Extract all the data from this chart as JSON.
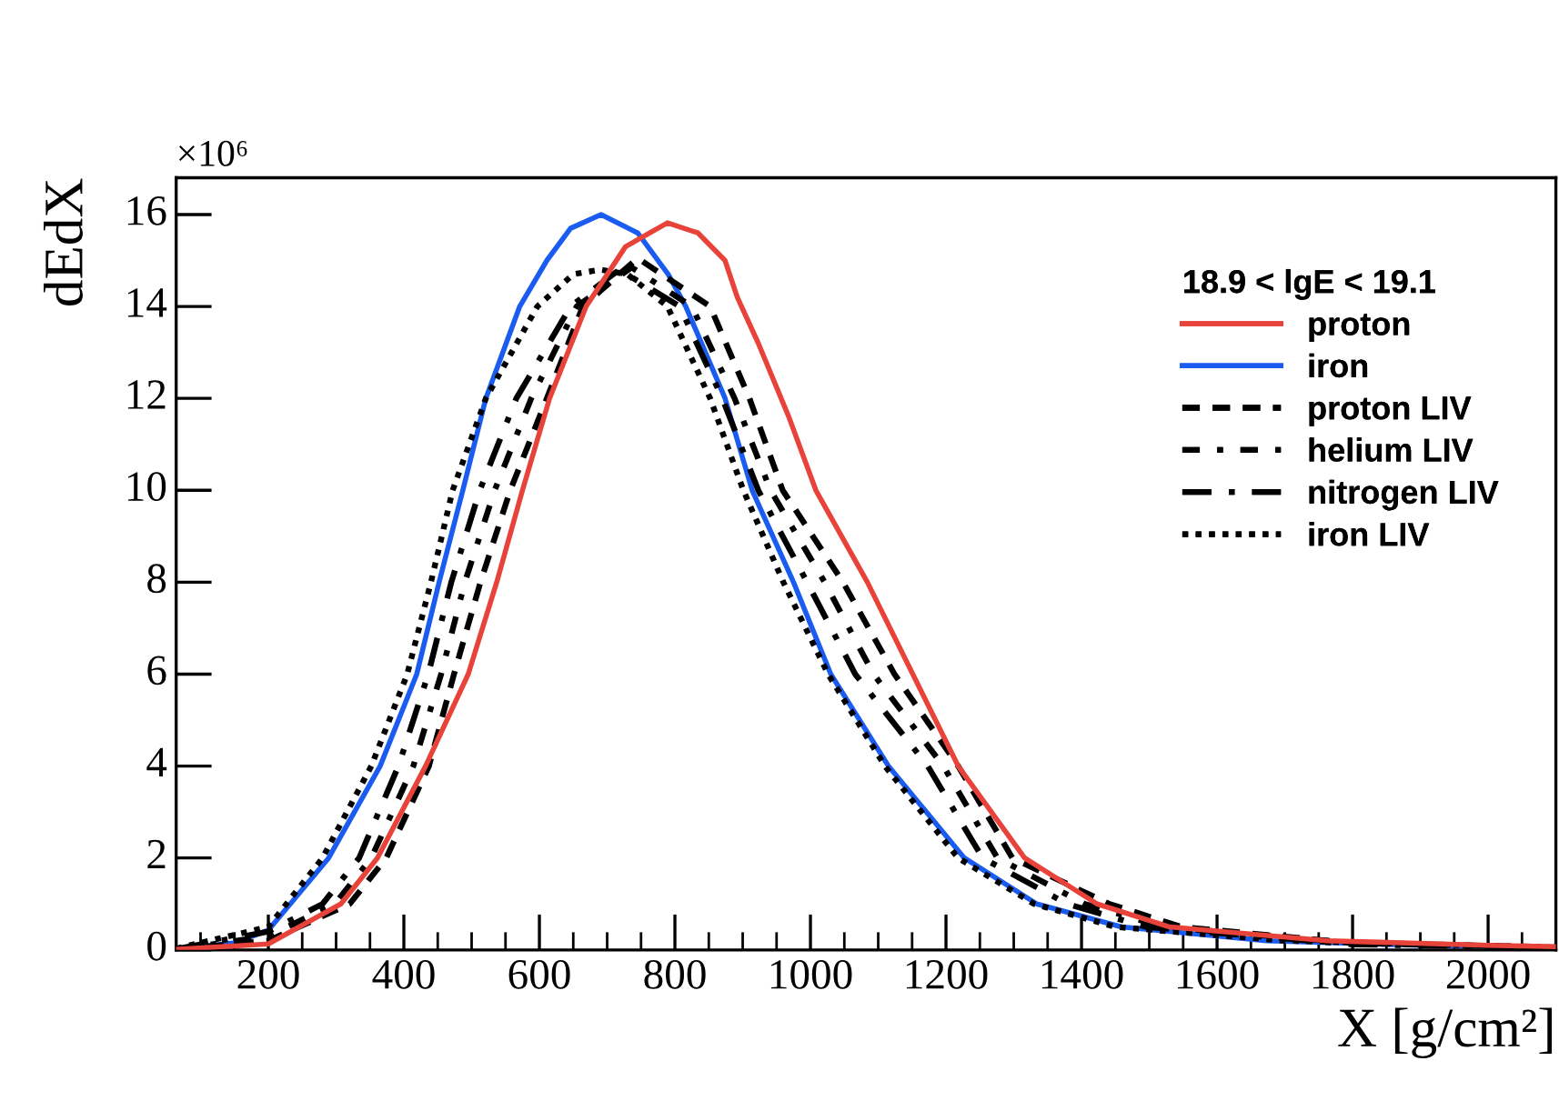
{
  "chart_data": {
    "type": "line",
    "xlabel": "X [g/cm²]",
    "ylabel": "dEdX",
    "legend_title": "18.9 < lgE < 19.1",
    "annotations": [
      "×10⁶"
    ],
    "xlim": [
      64,
      2100
    ],
    "xticks": [
      200,
      400,
      600,
      800,
      1000,
      1200,
      1400,
      1600,
      1800,
      2000
    ],
    "ylim": [
      0,
      16.8
    ],
    "yticks": [
      0,
      2,
      4,
      6,
      8,
      10,
      12,
      14,
      16
    ],
    "grid": false,
    "legend": "top right",
    "marker": "none",
    "series": [
      {
        "name": "proton",
        "color": "#e8433a",
        "line_style": "solid",
        "x": [
          64,
          200,
          307,
          361,
          432,
          495,
          537,
          575,
          615,
          669,
          727,
          789,
          834,
          874,
          892,
          923,
          968,
          1008,
          1084,
          1151,
          1218,
          1316,
          1423,
          1530,
          1763,
          2000,
          2100
        ],
        "values": [
          0.01,
          0.13,
          1,
          2,
          4,
          6,
          8,
          10,
          12,
          14,
          15.3,
          15.82,
          15.6,
          15,
          14.2,
          13.2,
          11.6,
          10,
          8,
          6,
          4,
          2,
          1,
          0.5,
          0.2,
          0.1,
          0.07
        ]
      },
      {
        "name": "iron",
        "color": "#1a5cf0",
        "line_style": "solid",
        "x": [
          64,
          150,
          200,
          289,
          365,
          419,
          452,
          487,
          521,
          571,
          611,
          646,
          691,
          745,
          790,
          816,
          874,
          914,
          975,
          1030,
          1115,
          1227,
          1334,
          1459,
          1673,
          1900,
          2100
        ],
        "values": [
          0.02,
          0.15,
          0.43,
          2,
          4,
          6,
          8,
          10,
          12,
          14,
          15,
          15.7,
          16,
          15.6,
          14.7,
          14,
          12,
          10,
          8,
          6,
          4,
          2,
          1,
          0.5,
          0.2,
          0.1,
          0.05
        ]
      },
      {
        "name": "proton LIV",
        "color": "#000000",
        "line_style": "dashed",
        "x": [
          64,
          200,
          320,
          374,
          437,
          474,
          513,
          557,
          611,
          664,
          745,
          852,
          910,
          959,
          1048,
          1124,
          1218,
          1298,
          1441,
          1548,
          1800,
          2100
        ],
        "values": [
          0.01,
          0.2,
          1,
          2,
          4,
          6,
          8,
          10,
          12,
          14,
          15.05,
          14,
          12,
          10,
          8,
          6,
          4,
          2,
          1,
          0.5,
          0.15,
          0.06
        ]
      },
      {
        "name": "helium LIV",
        "color": "#000000",
        "line_style": "dashdot",
        "x": [
          64,
          200,
          298,
          352,
          414,
          455,
          490,
          534,
          588,
          655,
          736,
          825,
          888,
          941,
          1021,
          1093,
          1196,
          1276,
          1405,
          1521,
          1800,
          2100
        ],
        "values": [
          0.01,
          0.3,
          1,
          2,
          4,
          6,
          8,
          10,
          12,
          14,
          14.85,
          14,
          12,
          10,
          8,
          6,
          4,
          2,
          1,
          0.5,
          0.15,
          0.05
        ]
      },
      {
        "name": "nitrogen LIV",
        "color": "#000000",
        "line_style": "longdashdot",
        "x": [
          64,
          200,
          280,
          334,
          392,
          436,
          470,
          512,
          566,
          646,
          718,
          807,
          870,
          923,
          995,
          1066,
          1173,
          1254,
          1379,
          1495,
          1800,
          2100
        ],
        "values": [
          0.02,
          0.4,
          1,
          2,
          4,
          6,
          8,
          10,
          12,
          14,
          14.8,
          14,
          12,
          10,
          8,
          6,
          4,
          2,
          1,
          0.5,
          0.12,
          0.05
        ]
      },
      {
        "name": "iron LIV",
        "color": "#000000",
        "line_style": "dotted",
        "x": [
          64,
          200,
          280,
          352,
          405,
          440,
          472,
          521,
          597,
          650,
          690,
          730,
          789,
          852,
          901,
          960,
          1026,
          1110,
          1218,
          1330,
          1450,
          1700,
          2100
        ],
        "values": [
          0.03,
          0.5,
          2,
          4,
          6,
          8,
          10,
          12,
          14,
          14.7,
          14.8,
          14.7,
          14,
          12,
          10,
          8,
          6,
          4,
          2,
          1,
          0.5,
          0.2,
          0.05
        ]
      }
    ]
  }
}
